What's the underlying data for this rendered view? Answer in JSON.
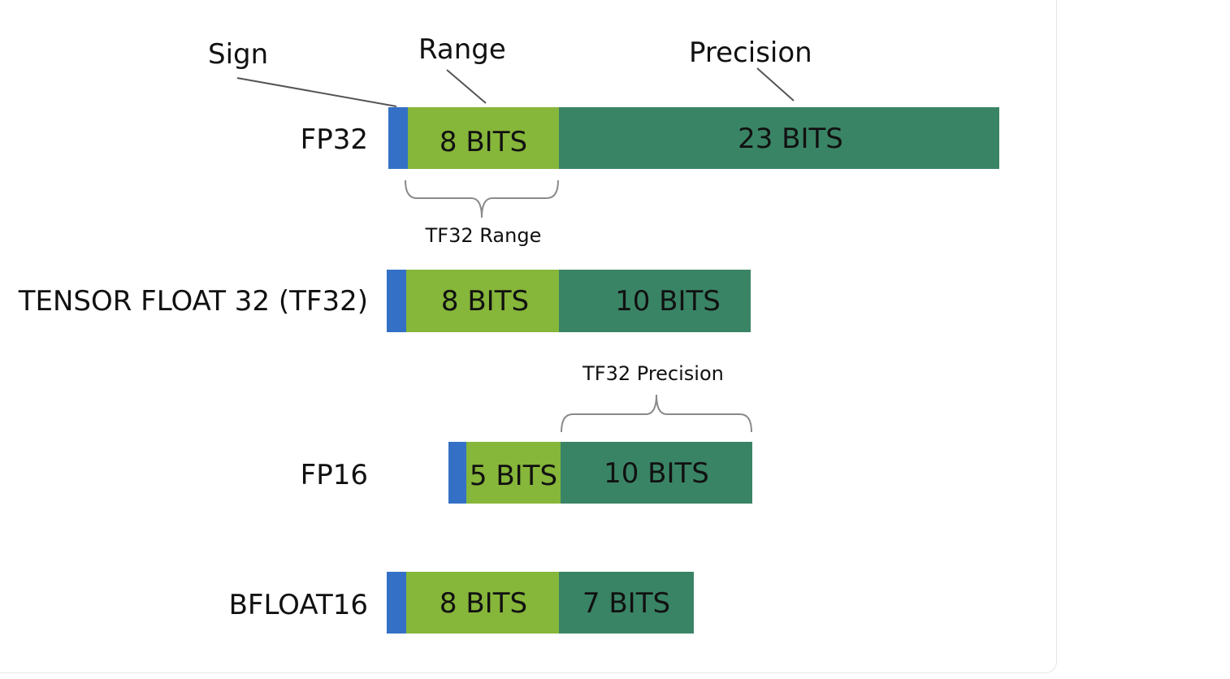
{
  "colors": {
    "sign": "#3471c6",
    "exponent": "#86b63a",
    "mantissa": "#3a8466"
  },
  "parts": {
    "sign": "Sign",
    "range": "Range",
    "precision": "Precision"
  },
  "formats": [
    {
      "name": "FP32",
      "exponent_label": "8 BITS",
      "mantissa_label": "23 BITS"
    },
    {
      "name": "TENSOR FLOAT 32 (TF32)",
      "exponent_label": "8 BITS",
      "mantissa_label": "10 BITS"
    },
    {
      "name": "FP16",
      "exponent_label": "5 BITS",
      "mantissa_label": "10 BITS"
    },
    {
      "name": "BFLOAT16",
      "exponent_label": "8 BITS",
      "mantissa_label": "7 BITS"
    }
  ],
  "braces": {
    "tf32_range": "TF32 Range",
    "tf32_precision": "TF32 Precision"
  }
}
